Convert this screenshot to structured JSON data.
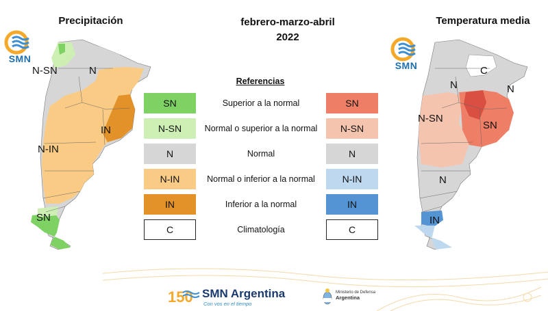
{
  "header": {
    "left_title": "Precipitación",
    "center_title_line1": "febrero-marzo-abril",
    "center_title_line2": "2022",
    "right_title": "Temperatura media"
  },
  "logos": {
    "smn_text": "SMN",
    "footer_brand": "SMN Argentina",
    "footer_tagline": "Con vos en el tiempo",
    "ministry_line1": "Ministerio de Defensa",
    "ministry_line2": "Argentina"
  },
  "legend": {
    "title": "Referencias",
    "rows": [
      {
        "code": "SN",
        "label": "Superior a la normal",
        "precip_color": "#7ed163",
        "temp_color": "#ee7f66"
      },
      {
        "code": "N-SN",
        "label": "Normal o superior a la normal",
        "precip_color": "#cdefb3",
        "temp_color": "#f5c4ae"
      },
      {
        "code": "N",
        "label": "Normal",
        "precip_color": "#d6d6d6",
        "temp_color": "#d6d6d6"
      },
      {
        "code": "N-IN",
        "label": "Normal o inferior a la normal",
        "precip_color": "#f9cb84",
        "temp_color": "#bdd8ef"
      },
      {
        "code": "IN",
        "label": "Inferior a la normal",
        "precip_color": "#e39129",
        "temp_color": "#5594d3"
      },
      {
        "code": "C",
        "label": "Climatología",
        "precip_color": "#ffffff",
        "temp_color": "#ffffff"
      }
    ]
  },
  "maps": {
    "precip_labels": [
      "N-SN",
      "N",
      "IN",
      "N-IN",
      "SN"
    ],
    "temp_labels": [
      "C",
      "N",
      "N",
      "N-SN",
      "SN",
      "N",
      "IN"
    ]
  }
}
